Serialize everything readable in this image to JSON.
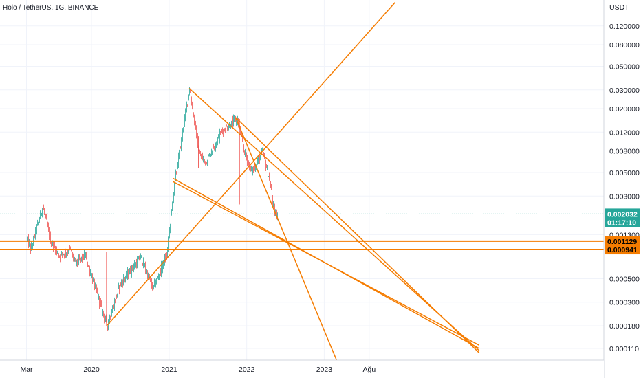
{
  "legend": "Holo / TetherUS, 1G, BINANCE",
  "chart_data": {
    "type": "candlestick",
    "title": "Holo / TetherUS, 1G, BINANCE",
    "y_unit": "USDT",
    "y_scale": "log",
    "y_ticks": [
      "0.120000",
      "0.080000",
      "0.050000",
      "0.030000",
      "0.020000",
      "0.012000",
      "0.008000",
      "0.005000",
      "0.003000",
      "0.001300",
      "0.000500",
      "0.000300",
      "0.000180",
      "0.000110"
    ],
    "x_ticks": [
      "Mar",
      "2020",
      "2021",
      "2022",
      "2023",
      "Ağu"
    ],
    "price_path": [
      {
        "date": "2019-03",
        "close": 0.0012
      },
      {
        "date": "2019-03-20",
        "close": 0.00095
      },
      {
        "date": "2019-05-15",
        "close": 0.0024
      },
      {
        "date": "2019-06-20",
        "close": 0.00115
      },
      {
        "date": "2019-08-01",
        "close": 0.00082
      },
      {
        "date": "2019-09-20",
        "close": 0.00095
      },
      {
        "date": "2019-10-15",
        "close": 0.00068
      },
      {
        "date": "2019-12-01",
        "close": 0.00083
      },
      {
        "date": "2020-03-13",
        "close": 0.00018
      },
      {
        "date": "2020-05-15",
        "close": 0.00045
      },
      {
        "date": "2020-08-20",
        "close": 0.0008
      },
      {
        "date": "2020-10-15",
        "close": 0.0004
      },
      {
        "date": "2020-12-20",
        "close": 0.00085
      },
      {
        "date": "2021-01-25",
        "close": 0.004
      },
      {
        "date": "2021-04-05",
        "close": 0.031
      },
      {
        "date": "2021-05-20",
        "close": 0.0075
      },
      {
        "date": "2021-06-20",
        "close": 0.0062
      },
      {
        "date": "2021-09-01",
        "close": 0.012
      },
      {
        "date": "2021-11-15",
        "close": 0.016
      },
      {
        "date": "2021-12-15",
        "close": 0.0085
      },
      {
        "date": "2022-01-22",
        "close": 0.005
      },
      {
        "date": "2022-03-15",
        "close": 0.0078
      },
      {
        "date": "2022-04-15",
        "close": 0.0045
      },
      {
        "date": "2022-05-10",
        "close": 0.0021
      },
      {
        "date": "2022-05-25",
        "close": 0.00203
      }
    ],
    "current_price": {
      "value": "0.002032",
      "countdown": "01:17:10",
      "color": "#26a69a"
    },
    "horizontal_levels": [
      {
        "value": "0.001129",
        "color": "#f57c00"
      },
      {
        "value": "0.000941",
        "color": "#f57c00"
      }
    ],
    "trendlines": [
      {
        "from": [
          "2020-03-13",
          0.00018
        ],
        "to": [
          "2023-12-01",
          0.2
        ],
        "color": "#f57c00"
      },
      {
        "from": [
          "2021-04-05",
          0.031
        ],
        "to": [
          "2024-12-31",
          0.000105
        ],
        "color": "#f57c00"
      },
      {
        "from": [
          "2021-11-10",
          0.0165
        ],
        "to": [
          "2023-04-01",
          6e-05
        ],
        "color": "#f57c00"
      },
      {
        "from": [
          "2021-11-10",
          0.0165
        ],
        "to": [
          "2024-12-31",
          0.0001
        ],
        "color": "#f57c00"
      },
      {
        "from": [
          "2021-01-20",
          0.0044
        ],
        "to": [
          "2024-12-31",
          0.00011
        ],
        "color": "#f57c00"
      },
      {
        "from": [
          "2021-01-20",
          0.0041
        ],
        "to": [
          "2024-12-31",
          0.000118
        ],
        "color": "#f57c00"
      }
    ],
    "candle_colors": {
      "up": "#26a69a",
      "down": "#ef5350"
    },
    "grid": true
  }
}
